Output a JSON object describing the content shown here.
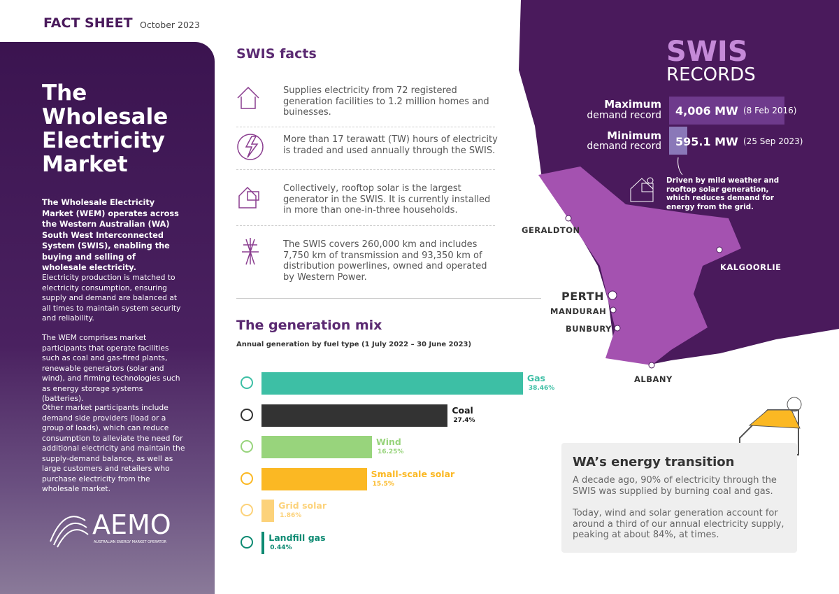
{
  "header": {
    "title": "FACT SHEET",
    "date": "October 2023"
  },
  "sidebar": {
    "title": "The Wholesale Electricity Market",
    "intro": "The Wholesale Electricity Market (WEM) operates across the Western Australian (WA) South West Interconnected System (SWIS), enabling the buying and selling of wholesale electricity.",
    "paragraphs": [
      "Electricity production is matched to electricity consumption, ensuring supply and demand are balanced at all times to maintain system security and reliability.",
      "The WEM comprises market participants that operate facilities such as coal and gas-fired plants, renewable generators (solar and wind), and firming technologies such as energy storage systems (batteries).",
      "Other market participants include demand side providers (load or a group of loads), which can reduce consumption to alleviate the need for additional electricity and maintain the supply-demand balance, as well as large customers and retailers who purchase electricity from the wholesale market."
    ],
    "logo": "AEMO",
    "logo_sub": "AUSTRALIAN ENERGY MARKET OPERATOR"
  },
  "facts": {
    "title": "SWIS facts",
    "items": [
      "Supplies electricity from 72 registered generation facilities to 1.2 million homes and buinesses.",
      "More than 17 terawatt (TW) hours of electricity is traded and used annually through the SWIS.",
      "Collectively, rooftop solar is the largest generator in the SWIS. It is currently installed in more than one-in-three households.",
      "The SWIS covers 260,000 km and includes 7,750 km of transmission and 93,350 km of distribution powerlines, owned and operated by Western Power."
    ]
  },
  "generation_mix": {
    "title": "The generation mix",
    "subtitle": "Annual generation by fuel type (1 July 2022 – 30 June 2023)",
    "categories": [
      "Gas",
      "Coal",
      "Wind",
      "Small-scale solar",
      "Grid solar",
      "Landfill gas"
    ],
    "values": [
      38.46,
      27.4,
      16.25,
      15.5,
      1.86,
      0.44
    ],
    "value_labels": [
      "38.46%",
      "27.4%",
      "16.25%",
      "15.5%",
      "1.86%",
      "0.44%"
    ],
    "colors": [
      "#3dbfa5",
      "#333333",
      "#98d47c",
      "#fbb823",
      "#fcd27a",
      "#0d8a72"
    ],
    "label_colors": [
      "#3dbfa5",
      "#1a1a1a",
      "#98d47c",
      "#fbb823",
      "#fcd27a",
      "#0d8a72"
    ]
  },
  "records": {
    "title_top": "SWIS",
    "title_bottom": "RECORDS",
    "items": [
      {
        "label_bold": "Maximum",
        "label": "demand record",
        "value": "4,006 MW",
        "date": "(8 Feb 2016)"
      },
      {
        "label_bold": "Minimum",
        "label": "demand record",
        "value": "595.1 MW",
        "date": "(25 Sep 2023)"
      }
    ],
    "note": "Driven by mild weather and rooftop solar generation, which reduces demand for energy from the grid."
  },
  "map": {
    "labels": [
      "GERALDTON",
      "KALGOORLIE",
      "PERTH",
      "MANDURAH",
      "BUNBURY",
      "ALBANY"
    ]
  },
  "transition": {
    "title": "WA’s energy transition",
    "paragraphs": [
      "A decade ago, 90% of electricity through the SWIS was supplied by burning coal and gas.",
      "Today, wind and solar generation account for around a third of our annual electricity supply, peaking at about 84%, at times."
    ]
  }
}
